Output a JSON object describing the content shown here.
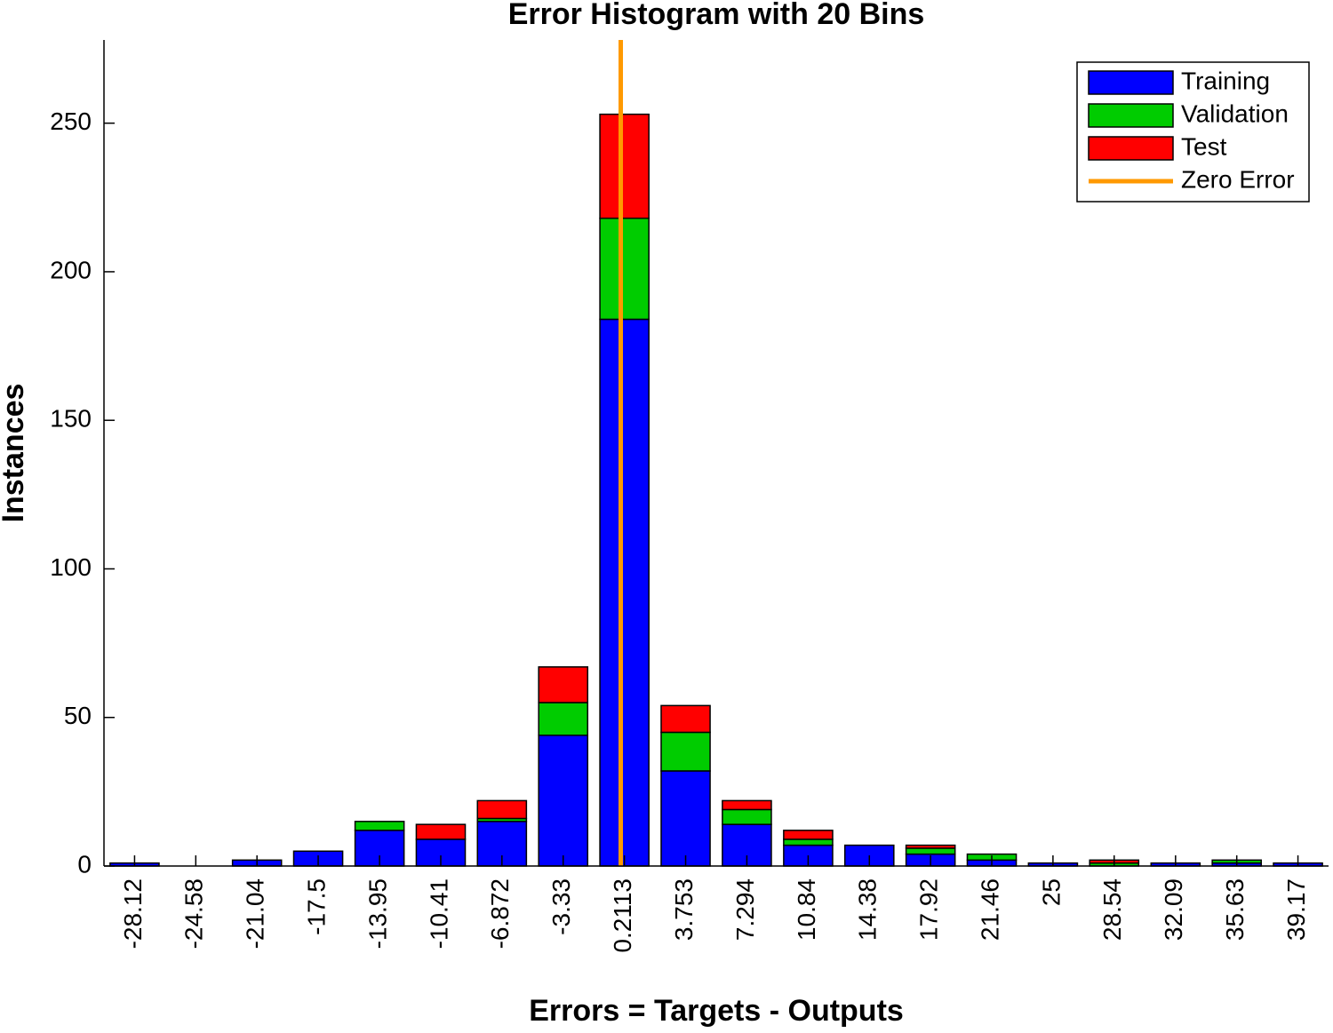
{
  "chart_data": {
    "type": "stacked_histogram",
    "title": "Error Histogram with 20 Bins",
    "xlabel": "Errors = Targets - Outputs",
    "ylabel": "Instances",
    "x": [
      -28.12,
      -24.58,
      -21.04,
      -17.5,
      -13.95,
      -10.41,
      -6.872,
      -3.33,
      0.2113,
      3.753,
      7.294,
      10.84,
      14.38,
      17.92,
      21.46,
      25,
      28.54,
      32.09,
      35.63,
      39.17
    ],
    "xlim": [
      -29.89,
      40.94
    ],
    "series": [
      {
        "name": "Training",
        "color": "#0000ff",
        "values": [
          1,
          0,
          2,
          5,
          12,
          9,
          15,
          44,
          184,
          32,
          14,
          7,
          7,
          4,
          2,
          1,
          0,
          1,
          1,
          1
        ]
      },
      {
        "name": "Validation",
        "color": "#00cc00",
        "values": [
          0,
          0,
          0,
          0,
          3,
          0,
          1,
          11,
          34,
          13,
          5,
          2,
          0,
          2,
          2,
          0,
          1,
          0,
          1,
          0
        ]
      },
      {
        "name": "Test",
        "color": "#ff0000",
        "values": [
          0,
          0,
          0,
          0,
          0,
          5,
          6,
          12,
          35,
          9,
          3,
          3,
          0,
          1,
          0,
          0,
          1,
          0,
          0,
          0
        ]
      }
    ],
    "zero_error": {
      "name": "Zero Error",
      "color": "#ff9900",
      "x": 0
    },
    "ylim": [
      0,
      278
    ],
    "yticks": [
      0,
      50,
      100,
      150,
      200,
      250
    ],
    "legend": "upper right"
  }
}
